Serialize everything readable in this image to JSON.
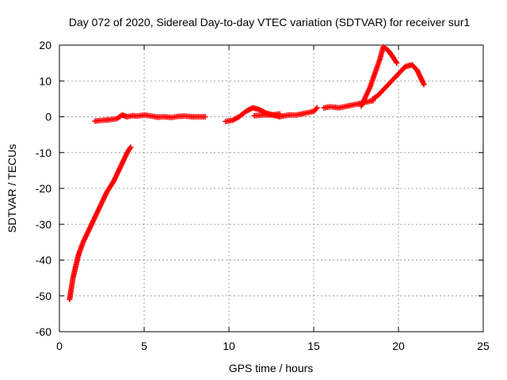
{
  "chart_data": {
    "type": "scatter",
    "title": "Day 072 of 2020, Sidereal Day-to-day VTEC variation (SDTVAR) for receiver sur1",
    "xlabel": "GPS time / hours",
    "ylabel": "SDTVAR / TECUs",
    "xlim": [
      0,
      25
    ],
    "ylim": [
      -60,
      20
    ],
    "xticks": [
      0,
      5,
      10,
      15,
      20,
      25
    ],
    "yticks": [
      -60,
      -50,
      -40,
      -30,
      -20,
      -10,
      0,
      10,
      20
    ],
    "xtick_labels": [
      "0",
      "5",
      "10",
      "15",
      "20",
      "25"
    ],
    "ytick_labels": [
      "-60",
      "-50",
      "-40",
      "-30",
      "-20",
      "-10",
      "0",
      "10",
      "20"
    ],
    "grid": true,
    "marker": "+",
    "series": [
      {
        "name": "sur1",
        "color": "#ff0000",
        "segments": [
          [
            [
              0.6,
              -51
            ],
            [
              0.7,
              -48
            ],
            [
              0.8,
              -45
            ],
            [
              0.9,
              -43
            ],
            [
              1.0,
              -41
            ],
            [
              1.1,
              -39
            ],
            [
              1.2,
              -37.5
            ],
            [
              1.4,
              -35
            ],
            [
              1.6,
              -33
            ],
            [
              1.8,
              -31
            ],
            [
              2.0,
              -29
            ],
            [
              2.2,
              -27
            ],
            [
              2.4,
              -25
            ],
            [
              2.6,
              -23
            ],
            [
              2.8,
              -21
            ],
            [
              3.0,
              -19.5
            ],
            [
              3.2,
              -18
            ],
            [
              3.4,
              -16
            ],
            [
              3.6,
              -14
            ],
            [
              3.8,
              -12
            ],
            [
              4.0,
              -10
            ],
            [
              4.2,
              -8.5
            ]
          ],
          [
            [
              2.1,
              -1.2
            ],
            [
              2.5,
              -1.0
            ],
            [
              3.0,
              -0.8
            ],
            [
              3.4,
              -0.5
            ],
            [
              3.7,
              0.5
            ],
            [
              4.0,
              0
            ],
            [
              4.3,
              0.3
            ],
            [
              4.6,
              0.2
            ],
            [
              5.0,
              0.5
            ],
            [
              5.4,
              0.2
            ],
            [
              5.8,
              -0.1
            ],
            [
              6.2,
              0
            ],
            [
              6.6,
              -0.2
            ],
            [
              7.0,
              0.1
            ],
            [
              7.4,
              0.2
            ],
            [
              7.8,
              0
            ],
            [
              8.2,
              0
            ],
            [
              8.6,
              0
            ]
          ],
          [
            [
              9.8,
              -1.3
            ],
            [
              10.2,
              -1.0
            ],
            [
              10.6,
              0
            ],
            [
              11.0,
              1.5
            ],
            [
              11.4,
              2.5
            ],
            [
              11.8,
              2.0
            ],
            [
              12.2,
              1.0
            ],
            [
              12.6,
              0.5
            ],
            [
              13.0,
              0
            ],
            [
              13.5,
              0.5
            ],
            [
              14.0,
              0.5
            ],
            [
              14.5,
              1.0
            ],
            [
              15.0,
              1.5
            ],
            [
              15.2,
              2.5
            ]
          ],
          [
            [
              11.5,
              0.3
            ],
            [
              12.0,
              0.5
            ],
            [
              12.5,
              0.5
            ],
            [
              13.0,
              0.8
            ]
          ],
          [
            [
              15.6,
              2.5
            ],
            [
              16.0,
              2.8
            ],
            [
              16.5,
              2.5
            ],
            [
              17.0,
              3.0
            ],
            [
              17.5,
              3.5
            ],
            [
              18.0,
              4.0
            ],
            [
              18.5,
              4.5
            ]
          ],
          [
            [
              17.8,
              3
            ],
            [
              18.0,
              5
            ],
            [
              18.3,
              8
            ],
            [
              18.6,
              12
            ],
            [
              18.9,
              16
            ],
            [
              19.1,
              19.5
            ],
            [
              19.4,
              18.5
            ],
            [
              19.7,
              16.5
            ],
            [
              19.9,
              15
            ]
          ],
          [
            [
              18.5,
              5
            ],
            [
              18.8,
              6
            ],
            [
              19.2,
              8
            ],
            [
              19.6,
              10
            ],
            [
              20.0,
              12
            ],
            [
              20.4,
              14
            ],
            [
              20.8,
              14.5
            ],
            [
              21.1,
              13
            ],
            [
              21.3,
              11
            ],
            [
              21.5,
              9
            ]
          ]
        ]
      }
    ]
  }
}
